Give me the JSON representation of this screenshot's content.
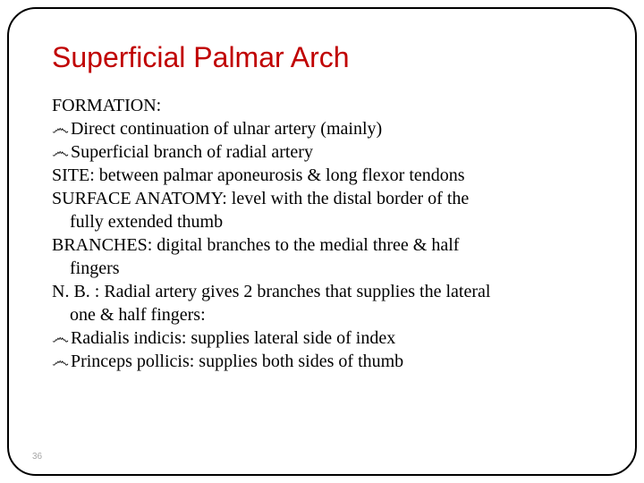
{
  "title_color": "#c00000",
  "text_color": "#000000",
  "border_color": "#000000",
  "background_color": "#ffffff",
  "title": "Superficial Palmar Arch",
  "lines": {
    "l0": "FORMATION:",
    "l1": "Direct continuation of ulnar artery (mainly)",
    "l2": "Superficial branch of radial artery",
    "l3": "SITE: between palmar aponeurosis & long flexor tendons",
    "l4": "SURFACE ANATOMY: level with the distal border of the",
    "l4b": "fully extended thumb",
    "l5": "BRANCHES: digital branches to the medial three & half",
    "l5b": "fingers",
    "l6": "N. B. : Radial artery gives 2 branches that supplies the lateral",
    "l6b": "one & half fingers:",
    "l7": "Radialis indicis: supplies lateral side of index",
    "l8": "Princeps pollicis: supplies both sides of thumb"
  },
  "page_number": "36",
  "fonts": {
    "title_family": "Arial",
    "title_size_pt": 32,
    "body_family": "Times New Roman",
    "body_size_pt": 20
  }
}
